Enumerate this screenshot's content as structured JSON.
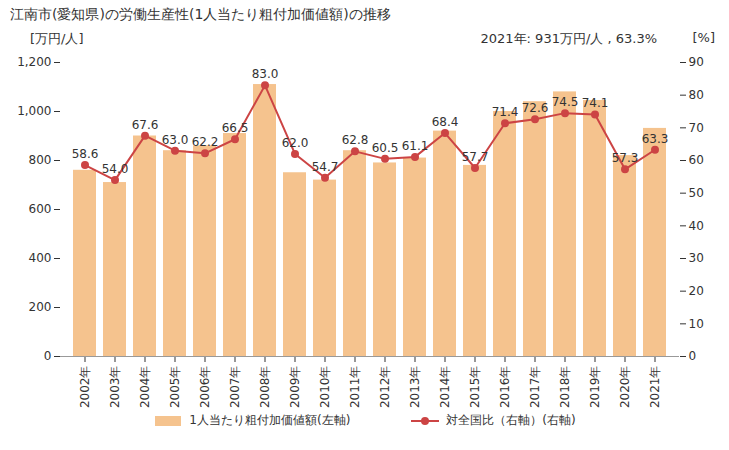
{
  "chart_data": {
    "type": "bar",
    "title": "江南市(愛知県)の労働生産性(1人当たり粗付加価値額)の推移",
    "annotation": "2021年: 931万円/人 , 63.3%",
    "y_label": "[万円/人]",
    "y2_label": "[%]",
    "categories": [
      "2002年",
      "2003年",
      "2004年",
      "2005年",
      "2006年",
      "2007年",
      "2008年",
      "2009年",
      "2010年",
      "2011年",
      "2012年",
      "2013年",
      "2014年",
      "2015年",
      "2016年",
      "2017年",
      "2018年",
      "2019年",
      "2020年",
      "2021年"
    ],
    "series": [
      {
        "name": "1人当たり粗付加価値額(左軸)",
        "type": "bar",
        "color": "#f5c38e",
        "values": [
          760,
          710,
          900,
          840,
          860,
          910,
          1110,
          750,
          720,
          840,
          790,
          810,
          920,
          780,
          1000,
          1040,
          1080,
          1045,
          820,
          931
        ]
      },
      {
        "name": "対全国比（右軸）(右軸)",
        "type": "line",
        "axis": "y2",
        "color": "#cc4444",
        "marker": "circle",
        "data_labels": true,
        "values": [
          58.6,
          54.0,
          67.6,
          63.0,
          62.2,
          66.5,
          83.0,
          62.0,
          54.7,
          62.8,
          60.5,
          61.1,
          68.4,
          57.7,
          71.4,
          72.6,
          74.5,
          74.1,
          57.3,
          63.3
        ],
        "value_labels": [
          "58.6",
          "54.0",
          "67.6",
          "63.0",
          "62.2",
          "66.5",
          "83.0",
          "62.0",
          "54.7",
          "62.8",
          "60.5",
          "61.1",
          "68.4",
          "57.7",
          "71.4",
          "72.6",
          "74.5",
          "74.1",
          "57.3",
          "63.3"
        ]
      }
    ],
    "ylim": [
      0,
      1200
    ],
    "yticks": [
      0,
      200,
      400,
      600,
      800,
      {
        "value": 1000,
        "label": "1,000"
      },
      {
        "value": 1200,
        "label": "1,200"
      }
    ],
    "y2lim": [
      0,
      90
    ],
    "y2ticks": [
      0,
      10,
      20,
      30,
      40,
      50,
      60,
      70,
      80,
      90
    ],
    "legend": "bottom",
    "grid": false
  }
}
